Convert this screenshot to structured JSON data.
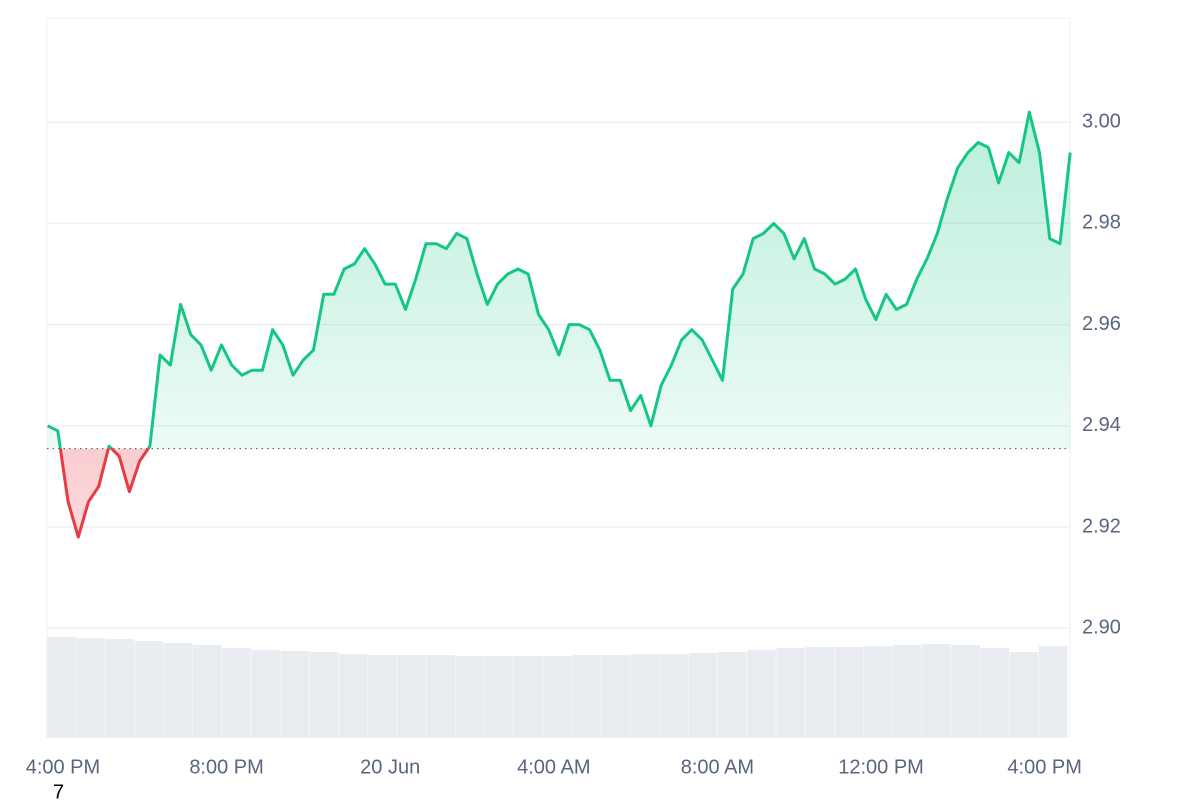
{
  "chart_data": {
    "type": "line",
    "x": [
      -0.375,
      -0.125,
      0.125,
      0.375,
      0.625,
      0.875,
      1.125,
      1.375,
      1.625,
      1.875,
      2.125,
      2.375,
      2.625,
      2.875,
      3.125,
      3.375,
      3.625,
      3.875,
      4.125,
      4.375,
      4.625,
      4.875,
      5.125,
      5.375,
      5.625,
      5.875,
      6.125,
      6.375,
      6.625,
      6.875,
      7.125,
      7.375,
      7.625,
      7.875,
      8.125,
      8.375,
      8.625,
      8.875,
      9.125,
      9.375,
      9.625,
      9.875,
      10.125,
      10.375,
      10.625,
      10.875,
      11.125,
      11.375,
      11.625,
      11.875,
      12.125,
      12.375,
      12.625,
      12.875,
      13.125,
      13.375,
      13.625,
      13.875,
      14.125,
      14.375,
      14.625,
      14.875,
      15.125,
      15.375,
      15.625,
      15.875,
      16.125,
      16.375,
      16.625,
      16.875,
      17.125,
      17.375,
      17.625,
      17.875,
      18.125,
      18.375,
      18.625,
      18.875,
      19.125,
      19.375,
      19.625,
      19.875,
      20.125,
      20.375,
      20.625,
      20.875,
      21.125,
      21.375,
      21.625,
      21.875,
      22.125,
      22.375,
      22.625,
      22.875,
      23.125,
      23.375,
      23.625,
      23.875,
      24.125,
      24.375,
      24.625
    ],
    "series": [
      {
        "name": "Price",
        "color": "#16c784",
        "down_color": "#ea3943",
        "values": [
          2.94,
          2.939,
          2.925,
          2.918,
          2.925,
          2.928,
          2.936,
          2.934,
          2.927,
          2.933,
          2.936,
          2.954,
          2.952,
          2.964,
          2.958,
          2.956,
          2.951,
          2.956,
          2.952,
          2.95,
          2.951,
          2.951,
          2.959,
          2.956,
          2.95,
          2.953,
          2.955,
          2.966,
          2.966,
          2.971,
          2.972,
          2.975,
          2.972,
          2.968,
          2.968,
          2.963,
          2.969,
          2.976,
          2.976,
          2.975,
          2.978,
          2.977,
          2.97,
          2.964,
          2.968,
          2.97,
          2.971,
          2.97,
          2.962,
          2.959,
          2.954,
          2.96,
          2.96,
          2.959,
          2.955,
          2.949,
          2.949,
          2.943,
          2.946,
          2.94,
          2.948,
          2.952,
          2.957,
          2.959,
          2.957,
          2.953,
          2.949,
          2.967,
          2.97,
          2.977,
          2.978,
          2.98,
          2.978,
          2.973,
          2.977,
          2.971,
          2.97,
          2.968,
          2.969,
          2.971,
          2.965,
          2.961,
          2.966,
          2.963,
          2.964,
          2.969,
          2.973,
          2.978,
          2.985,
          2.991,
          2.994,
          2.996,
          2.995,
          2.988,
          2.994,
          2.992,
          3.002,
          2.994,
          2.977,
          2.976,
          2.994
        ]
      }
    ],
    "baseline": 2.9355,
    "volume": {
      "color": "#e9edf2",
      "ylim": [
        0,
        101
      ],
      "values": [
        101,
        100,
        99,
        97,
        95,
        93,
        90,
        88,
        87,
        86,
        84,
        83,
        83,
        83,
        82,
        82,
        82,
        82,
        83,
        83,
        84,
        84,
        85,
        86,
        88,
        90,
        91,
        91,
        92,
        93,
        94,
        93,
        90,
        86,
        92
      ]
    },
    "xlim": [
      -0.39,
      24.62
    ],
    "xticks": [
      {
        "value": 0,
        "label": "4:00 PM"
      },
      {
        "value": 4,
        "label": "8:00 PM"
      },
      {
        "value": 8,
        "label": "20 Jun"
      },
      {
        "value": 12,
        "label": "4:00 AM"
      },
      {
        "value": 16,
        "label": "8:00 AM"
      },
      {
        "value": 20,
        "label": "12:00 PM"
      },
      {
        "value": 24,
        "label": "4:00 PM"
      }
    ],
    "ylim": [
      2.8783,
      3.0206
    ],
    "yticks": [
      {
        "value": 2.9,
        "label": "2.90"
      },
      2.92,
      2.94,
      2.96,
      2.98,
      {
        "value": 3,
        "label": "3.00"
      }
    ],
    "grid": true,
    "annotation": "7"
  }
}
